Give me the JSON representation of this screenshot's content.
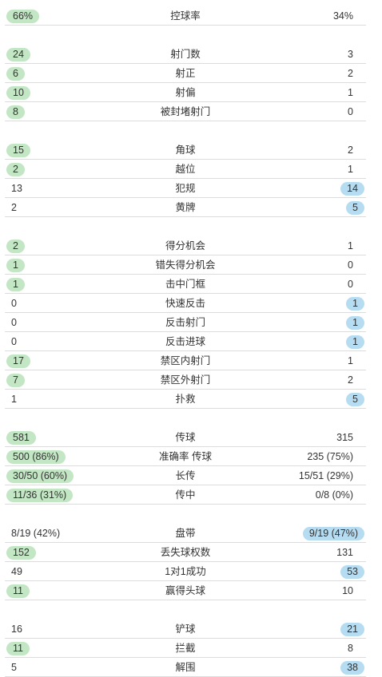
{
  "stats": [
    {
      "label": "控球率",
      "left": "66%",
      "right": "34%",
      "hl": "left"
    },
    {
      "label": "射门数",
      "left": "24",
      "right": "3",
      "hl": "left"
    },
    {
      "label": "射正",
      "left": "6",
      "right": "2",
      "hl": "left"
    },
    {
      "label": "射偏",
      "left": "10",
      "right": "1",
      "hl": "left"
    },
    {
      "label": "被封堵射门",
      "left": "8",
      "right": "0",
      "hl": "left"
    },
    {
      "label": "角球",
      "left": "15",
      "right": "2",
      "hl": "left"
    },
    {
      "label": "越位",
      "left": "2",
      "right": "1",
      "hl": "left"
    },
    {
      "label": "犯规",
      "left": "13",
      "right": "14",
      "hl": "right"
    },
    {
      "label": "黄牌",
      "left": "2",
      "right": "5",
      "hl": "right"
    },
    {
      "label": "得分机会",
      "left": "2",
      "right": "1",
      "hl": "left"
    },
    {
      "label": "错失得分机会",
      "left": "1",
      "right": "0",
      "hl": "left"
    },
    {
      "label": "击中门框",
      "left": "1",
      "right": "0",
      "hl": "left"
    },
    {
      "label": "快速反击",
      "left": "0",
      "right": "1",
      "hl": "right"
    },
    {
      "label": "反击射门",
      "left": "0",
      "right": "1",
      "hl": "right"
    },
    {
      "label": "反击进球",
      "left": "0",
      "right": "1",
      "hl": "right"
    },
    {
      "label": "禁区内射门",
      "left": "17",
      "right": "1",
      "hl": "left"
    },
    {
      "label": "禁区外射门",
      "left": "7",
      "right": "2",
      "hl": "left"
    },
    {
      "label": "扑救",
      "left": "1",
      "right": "5",
      "hl": "right"
    },
    {
      "label": "传球",
      "left": "581",
      "right": "315",
      "hl": "left"
    },
    {
      "label": "准确率 传球",
      "left": "500 (86%)",
      "right": "235 (75%)",
      "hl": "left"
    },
    {
      "label": "长传",
      "left": "30/50 (60%)",
      "right": "15/51 (29%)",
      "hl": "left"
    },
    {
      "label": "传中",
      "left": "11/36 (31%)",
      "right": "0/8 (0%)",
      "hl": "left"
    },
    {
      "label": "盘带",
      "left": "8/19 (42%)",
      "right": "9/19 (47%)",
      "hl": "right"
    },
    {
      "label": "丢失球权数",
      "left": "152",
      "right": "131",
      "hl": "left"
    },
    {
      "label": "1对1成功",
      "left": "49",
      "right": "53",
      "hl": "right"
    },
    {
      "label": "赢得头球",
      "left": "11",
      "right": "10",
      "hl": "left"
    },
    {
      "label": "铲球",
      "left": "16",
      "right": "21",
      "hl": "right"
    },
    {
      "label": "拦截",
      "left": "11",
      "right": "8",
      "hl": "left"
    },
    {
      "label": "解围",
      "left": "5",
      "right": "38",
      "hl": "right"
    }
  ]
}
